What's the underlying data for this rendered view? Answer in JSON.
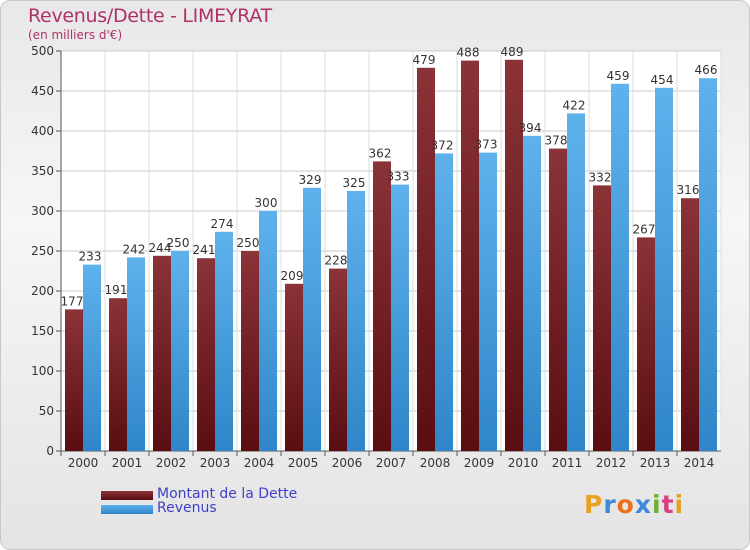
{
  "header": {
    "title": "Revenus/Dette - LIMEYRAT",
    "subtitle": "(en milliers d'€)"
  },
  "legend": {
    "debt_label": "Montant de la Dette",
    "revenue_label": "Revenus"
  },
  "logo": {
    "text": "Proxiti"
  },
  "colors": {
    "debt": "#7a2a2e",
    "revenue": "#4aa3e0",
    "title": "#b0306a",
    "legend_text": "#4040c8"
  },
  "chart_data": {
    "type": "bar",
    "categories": [
      "2000",
      "2001",
      "2002",
      "2003",
      "2004",
      "2005",
      "2006",
      "2007",
      "2008",
      "2009",
      "2010",
      "2011",
      "2012",
      "2013",
      "2014"
    ],
    "series": [
      {
        "name": "Montant de la Dette",
        "values": [
          177,
          191,
          244,
          241,
          250,
          209,
          228,
          362,
          479,
          488,
          489,
          378,
          332,
          267,
          316
        ]
      },
      {
        "name": "Revenus",
        "values": [
          233,
          242,
          250,
          274,
          300,
          329,
          325,
          333,
          372,
          373,
          394,
          422,
          459,
          454,
          466
        ]
      }
    ],
    "title": "Revenus/Dette - LIMEYRAT",
    "ylabel": "(en milliers d'€)",
    "ylim": [
      0,
      500
    ],
    "yticks": [
      0,
      50,
      100,
      150,
      200,
      250,
      300,
      350,
      400,
      450,
      500
    ],
    "grid": true,
    "legend": "bottom-left"
  }
}
